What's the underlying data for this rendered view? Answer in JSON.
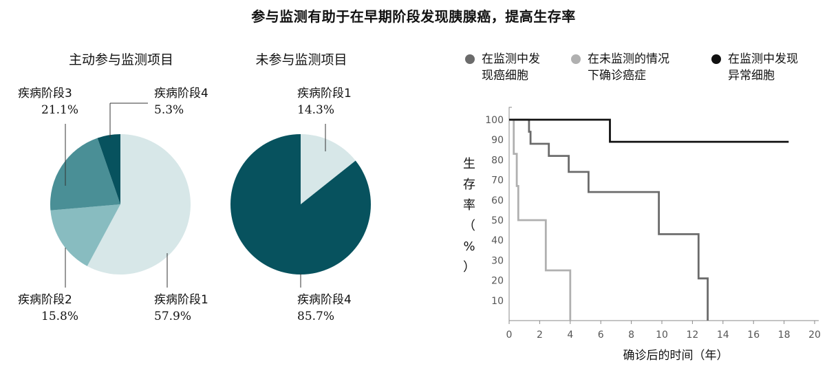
{
  "title": "参与监测有助于在早期阶段发现胰腺癌，提高生存率",
  "colors": {
    "stage1": "#d7e7e8",
    "stage2": "#88bcc0",
    "stage3": "#4a8f96",
    "stage4": "#07525e",
    "km_detected": "#6b6b6b",
    "km_unmonitored": "#b0b0b0",
    "km_abnormal": "#111111"
  },
  "chart_data": [
    {
      "type": "pie",
      "title": "主动参与监测项目",
      "slices": [
        {
          "label": "疾病阶段1",
          "value": 57.9,
          "display": "57.9%"
        },
        {
          "label": "疾病阶段2",
          "value": 15.8,
          "display": "15.8%"
        },
        {
          "label": "疾病阶段3",
          "value": 21.1,
          "display": "21.1%"
        },
        {
          "label": "疾病阶段4",
          "value": 5.3,
          "display": "5.3%"
        }
      ]
    },
    {
      "type": "pie",
      "title": "未参与监测项目",
      "slices": [
        {
          "label": "疾病阶段1",
          "value": 14.3,
          "display": "14.3%"
        },
        {
          "label": "疾病阶段4",
          "value": 85.7,
          "display": "85.7%"
        }
      ]
    },
    {
      "type": "line",
      "xlabel": "确诊后的时间（年）",
      "ylabel": "生存率（%）",
      "xlim": [
        0,
        20
      ],
      "ylim": [
        0,
        100
      ],
      "x_ticks": [
        "0",
        "2",
        "4",
        "6",
        "8",
        "10",
        "12",
        "14",
        "16",
        "18",
        "20"
      ],
      "y_ticks": [
        "10",
        "20",
        "30",
        "40",
        "50",
        "60",
        "70",
        "80",
        "90",
        "100"
      ],
      "legend_position": "top",
      "series": [
        {
          "name": "在监测中发现癌细胞",
          "color_key": "km_detected",
          "steps": [
            [
              0,
              100
            ],
            [
              1.3,
              100
            ],
            [
              1.3,
              94
            ],
            [
              1.4,
              94
            ],
            [
              1.4,
              88
            ],
            [
              2.6,
              88
            ],
            [
              2.6,
              82
            ],
            [
              3.9,
              82
            ],
            [
              3.9,
              74
            ],
            [
              5.2,
              74
            ],
            [
              5.2,
              64
            ],
            [
              9.8,
              64
            ],
            [
              9.8,
              43
            ],
            [
              12.4,
              43
            ],
            [
              12.4,
              21
            ],
            [
              13.0,
              21
            ],
            [
              13.0,
              0
            ]
          ]
        },
        {
          "name": "在未监测的情况下确诊癌症",
          "color_key": "km_unmonitored",
          "steps": [
            [
              0,
              100
            ],
            [
              0.3,
              100
            ],
            [
              0.3,
              83
            ],
            [
              0.5,
              83
            ],
            [
              0.5,
              67
            ],
            [
              0.6,
              67
            ],
            [
              0.6,
              50
            ],
            [
              2.4,
              50
            ],
            [
              2.4,
              25
            ],
            [
              4.0,
              25
            ],
            [
              4.0,
              0
            ]
          ]
        },
        {
          "name": "在监测中发现异常细胞",
          "color_key": "km_abnormal",
          "steps": [
            [
              0,
              100
            ],
            [
              6.6,
              100
            ],
            [
              6.6,
              89
            ],
            [
              18.3,
              89
            ]
          ]
        }
      ]
    }
  ],
  "legend": [
    {
      "line1": "在监测中发",
      "line2": "现癌细胞",
      "color_key": "km_detected"
    },
    {
      "line1": "在未监测的情况",
      "line2": "下确诊癌症",
      "color_key": "km_unmonitored"
    },
    {
      "line1": "在监测中发现",
      "line2": "异常细胞",
      "color_key": "km_abnormal"
    }
  ]
}
